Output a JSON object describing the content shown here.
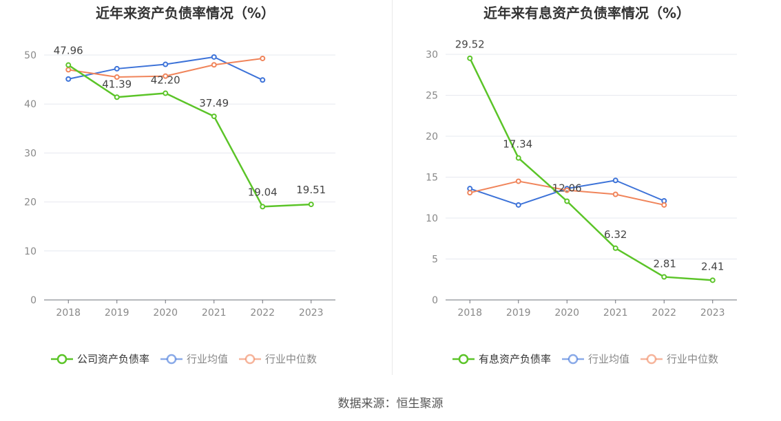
{
  "chart_data": [
    {
      "type": "line",
      "title": "近年来资产负债率情况（%）",
      "categories": [
        "2018",
        "2019",
        "2020",
        "2021",
        "2022",
        "2023"
      ],
      "ylim": [
        0,
        50
      ],
      "yticks": [
        0,
        10,
        20,
        30,
        40,
        50
      ],
      "grid": true,
      "legend_position": "bottom",
      "series": [
        {
          "name": "公司资产负债率",
          "color": "#5bc428",
          "values": [
            47.96,
            41.39,
            42.2,
            37.49,
            19.04,
            19.51
          ],
          "labels": [
            "47.96",
            "41.39",
            "42.20",
            "37.49",
            "19.04",
            "19.51"
          ]
        },
        {
          "name": "行业均值",
          "color": "#3c72d8",
          "values": [
            45.1,
            47.2,
            48.1,
            49.6,
            44.9,
            null
          ]
        },
        {
          "name": "行业中位数",
          "color": "#f0845a",
          "values": [
            47.0,
            45.5,
            45.7,
            48.0,
            49.3,
            null
          ]
        }
      ]
    },
    {
      "type": "line",
      "title": "近年来有息资产负债率情况（%）",
      "categories": [
        "2018",
        "2019",
        "2020",
        "2021",
        "2022",
        "2023"
      ],
      "ylim": [
        0,
        30
      ],
      "yticks": [
        0,
        5,
        10,
        15,
        20,
        25,
        30
      ],
      "grid": true,
      "legend_position": "bottom",
      "series": [
        {
          "name": "有息资产负债率",
          "color": "#5bc428",
          "values": [
            29.52,
            17.34,
            12.06,
            6.32,
            2.81,
            2.41
          ],
          "labels": [
            "29.52",
            "17.34",
            "12.06",
            "6.32",
            "2.81",
            "2.41"
          ]
        },
        {
          "name": "行业均值",
          "color": "#3c72d8",
          "values": [
            13.6,
            11.6,
            13.6,
            14.6,
            12.1,
            null
          ]
        },
        {
          "name": "行业中位数",
          "color": "#f0845a",
          "values": [
            13.1,
            14.5,
            13.4,
            12.9,
            11.6,
            null
          ]
        }
      ]
    }
  ],
  "source_text": "数据来源：恒生聚源"
}
